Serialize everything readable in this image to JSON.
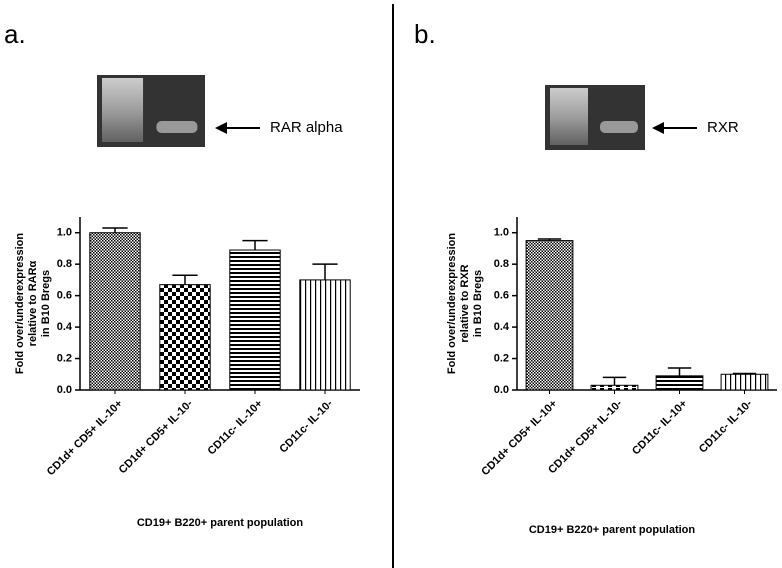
{
  "chart_data": [
    {
      "type": "bar",
      "panel": "a.",
      "gel_label": "RAR alpha",
      "ylabel": [
        "Fold over/underexpression",
        "relative to RARα",
        "in B10 Bregs"
      ],
      "xlabel": "CD19+ B220+ parent population",
      "categories": [
        "CD1d+ CD5+ IL-10+",
        "CD1d+ CD5+ IL-10-",
        "CD11c- IL-10+",
        "CD11c- IL-10-"
      ],
      "values": [
        1.0,
        0.67,
        0.89,
        0.7
      ],
      "errors": [
        0.03,
        0.06,
        0.06,
        0.1
      ],
      "color": "#000000",
      "ylim": [
        0,
        1.1
      ],
      "yticks": [
        {
          "value": 0,
          "label": "0.0"
        },
        0.2,
        0.4,
        0.6,
        0.8,
        {
          "value": 1,
          "label": "1.0"
        }
      ]
    },
    {
      "type": "bar",
      "panel": "b.",
      "gel_label": "RXR",
      "ylabel": [
        "Fold over/underexpression",
        "relative to RXR",
        "in B10 Bregs"
      ],
      "xlabel": "CD19+ B220+ parent population",
      "categories": [
        "CD1d+ CD5+ IL-10+",
        "CD1d+ CD5+ IL-10-",
        "CD11c- IL-10+",
        "CD11c- IL-10-"
      ],
      "values": [
        0.95,
        0.03,
        0.09,
        0.1
      ],
      "errors": [
        0.01,
        0.05,
        0.05,
        0.005
      ],
      "color": "#000000",
      "ylim": [
        0,
        1.1
      ],
      "yticks": [
        {
          "value": 0,
          "label": "0.0"
        },
        0.2,
        0.4,
        0.6,
        0.8,
        {
          "value": 1,
          "label": "1.0"
        }
      ]
    }
  ]
}
